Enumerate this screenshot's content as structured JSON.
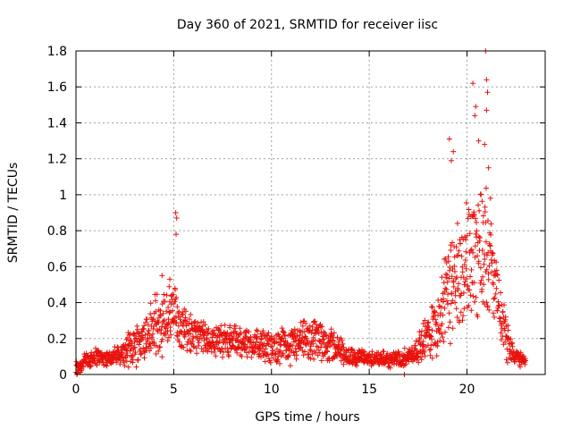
{
  "chart_data": {
    "type": "scatter",
    "title": "Day 360 of 2021, SRMTID for receiver iisc",
    "xlabel": "GPS time / hours",
    "ylabel": "SRMTID / TECUs",
    "xlim": [
      0,
      24
    ],
    "ylim": [
      0,
      1.8
    ],
    "xticks": [
      0,
      5,
      10,
      15,
      20
    ],
    "yticks": [
      0,
      0.2,
      0.4,
      0.6,
      0.8,
      1,
      1.2,
      1.4,
      1.6,
      1.8
    ],
    "xtick_labels": [
      "0",
      "5",
      "10",
      "15",
      "20"
    ],
    "ytick_labels": [
      "0",
      "0.2",
      "0.4",
      "0.6",
      "0.8",
      "1",
      "1.2",
      "1.4",
      "1.6",
      "1.8"
    ],
    "grid": true,
    "marker": "+",
    "color": "#e8120c",
    "envelope": [
      {
        "x": 0.0,
        "base": 0.03,
        "spread": 0.06
      },
      {
        "x": 0.5,
        "base": 0.08,
        "spread": 0.06
      },
      {
        "x": 1.0,
        "base": 0.1,
        "spread": 0.06
      },
      {
        "x": 1.5,
        "base": 0.09,
        "spread": 0.05
      },
      {
        "x": 2.0,
        "base": 0.1,
        "spread": 0.06
      },
      {
        "x": 2.5,
        "base": 0.12,
        "spread": 0.08
      },
      {
        "x": 3.0,
        "base": 0.17,
        "spread": 0.14
      },
      {
        "x": 3.5,
        "base": 0.2,
        "spread": 0.16
      },
      {
        "x": 4.0,
        "base": 0.25,
        "spread": 0.22
      },
      {
        "x": 4.5,
        "base": 0.28,
        "spread": 0.25
      },
      {
        "x": 5.0,
        "base": 0.33,
        "spread": 0.22
      },
      {
        "x": 5.5,
        "base": 0.27,
        "spread": 0.14
      },
      {
        "x": 6.0,
        "base": 0.22,
        "spread": 0.12
      },
      {
        "x": 7.0,
        "base": 0.19,
        "spread": 0.1
      },
      {
        "x": 8.0,
        "base": 0.19,
        "spread": 0.1
      },
      {
        "x": 9.0,
        "base": 0.17,
        "spread": 0.1
      },
      {
        "x": 10.0,
        "base": 0.15,
        "spread": 0.1
      },
      {
        "x": 11.0,
        "base": 0.16,
        "spread": 0.12
      },
      {
        "x": 12.0,
        "base": 0.19,
        "spread": 0.14
      },
      {
        "x": 13.0,
        "base": 0.17,
        "spread": 0.12
      },
      {
        "x": 14.0,
        "base": 0.1,
        "spread": 0.06
      },
      {
        "x": 15.0,
        "base": 0.09,
        "spread": 0.05
      },
      {
        "x": 16.0,
        "base": 0.08,
        "spread": 0.05
      },
      {
        "x": 17.0,
        "base": 0.1,
        "spread": 0.06
      },
      {
        "x": 17.5,
        "base": 0.14,
        "spread": 0.08
      },
      {
        "x": 18.0,
        "base": 0.22,
        "spread": 0.18
      },
      {
        "x": 18.5,
        "base": 0.3,
        "spread": 0.22
      },
      {
        "x": 19.0,
        "base": 0.45,
        "spread": 0.35
      },
      {
        "x": 19.5,
        "base": 0.55,
        "spread": 0.38
      },
      {
        "x": 20.0,
        "base": 0.6,
        "spread": 0.4
      },
      {
        "x": 20.5,
        "base": 0.72,
        "spread": 0.45
      },
      {
        "x": 21.0,
        "base": 0.75,
        "spread": 0.45
      },
      {
        "x": 21.5,
        "base": 0.45,
        "spread": 0.2
      },
      {
        "x": 22.0,
        "base": 0.2,
        "spread": 0.14
      },
      {
        "x": 22.5,
        "base": 0.1,
        "spread": 0.06
      },
      {
        "x": 23.0,
        "base": 0.08,
        "spread": 0.04
      }
    ],
    "peaks": [
      {
        "x": 5.1,
        "y": 0.9
      },
      {
        "x": 5.15,
        "y": 0.87
      },
      {
        "x": 5.12,
        "y": 0.78
      },
      {
        "x": 4.4,
        "y": 0.55
      },
      {
        "x": 4.8,
        "y": 0.53
      },
      {
        "x": 19.1,
        "y": 1.31
      },
      {
        "x": 19.3,
        "y": 1.24
      },
      {
        "x": 19.2,
        "y": 1.19
      },
      {
        "x": 20.3,
        "y": 1.62
      },
      {
        "x": 20.45,
        "y": 1.49
      },
      {
        "x": 20.4,
        "y": 1.44
      },
      {
        "x": 20.95,
        "y": 1.8
      },
      {
        "x": 21.0,
        "y": 1.64
      },
      {
        "x": 21.05,
        "y": 1.57
      },
      {
        "x": 21.0,
        "y": 1.47
      },
      {
        "x": 20.6,
        "y": 1.3
      },
      {
        "x": 20.9,
        "y": 1.28
      },
      {
        "x": 21.1,
        "y": 1.15
      },
      {
        "x": 21.2,
        "y": 0.98
      },
      {
        "x": 16.8,
        "y": 0.0
      },
      {
        "x": 0.05,
        "y": 0.0
      }
    ]
  }
}
